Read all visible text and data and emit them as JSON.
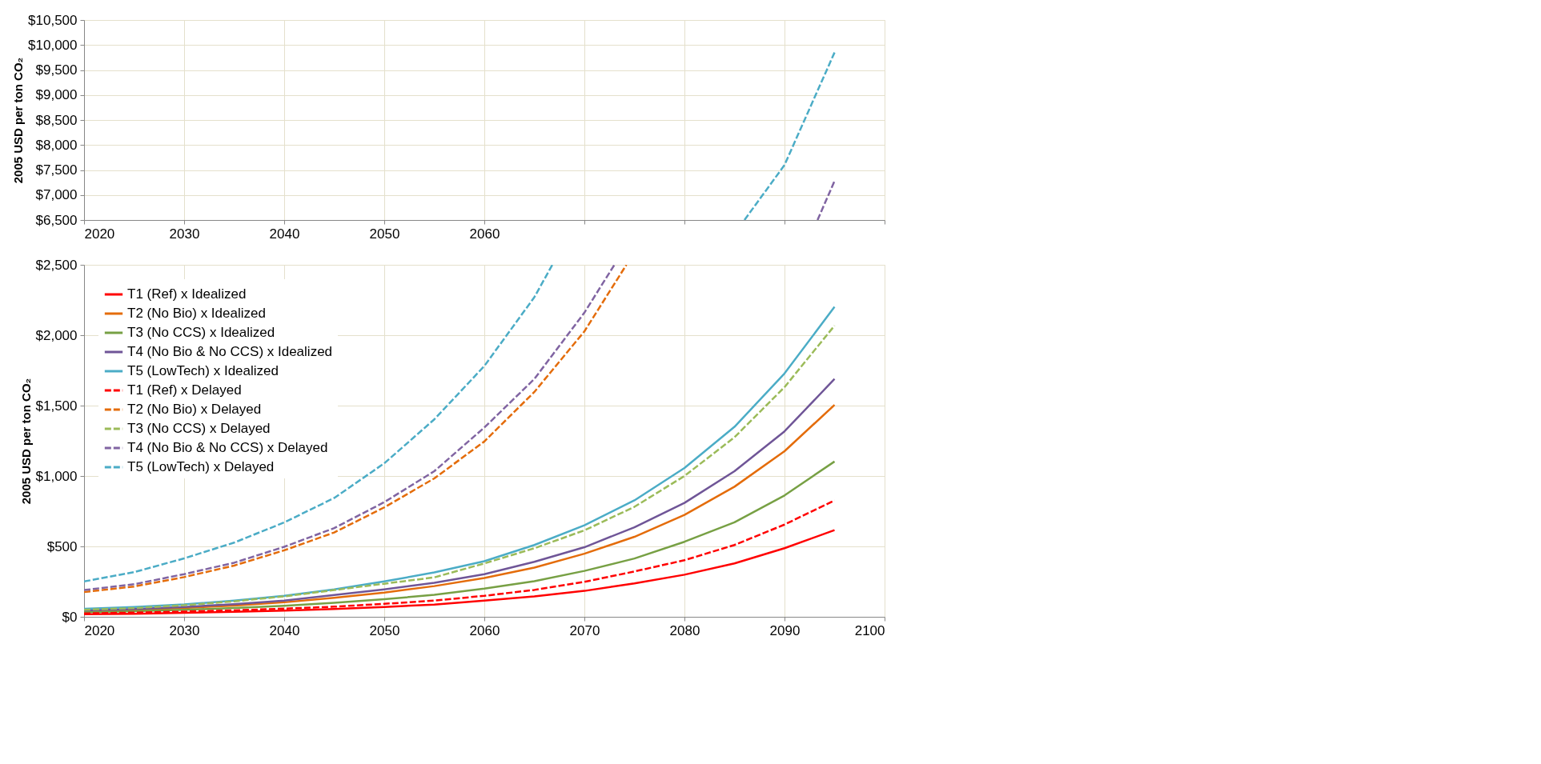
{
  "chart_data": [
    {
      "type": "line",
      "ylabel": "2005 USD per ton CO₂",
      "xlim": [
        2020,
        2100
      ],
      "ylim": [
        6500,
        10500
      ],
      "grid": true,
      "xticks": [
        2020,
        2030,
        2040,
        2050,
        2060,
        {
          "value": 2070,
          "label": null
        },
        {
          "value": 2080,
          "label": null
        },
        {
          "value": 2090,
          "label": null
        },
        {
          "value": 2100,
          "label": null
        }
      ],
      "yticks": [
        {
          "value": 6500,
          "label": "$6,500"
        },
        {
          "value": 7000,
          "label": "$7,000"
        },
        {
          "value": 7500,
          "label": "$7,500"
        },
        {
          "value": 8000,
          "label": "$8,000"
        },
        {
          "value": 8500,
          "label": "$8,500"
        },
        {
          "value": 9000,
          "label": "$9,000"
        },
        {
          "value": 9500,
          "label": "$9,500"
        },
        {
          "value": 10000,
          "label": "$10,000"
        },
        {
          "value": 10500,
          "label": "$10,500"
        }
      ],
      "series": [
        {
          "color": "#8064a2",
          "line_style": "dashed",
          "x": [
            2093.3,
            2095
          ],
          "values": [
            6500,
            7280
          ]
        },
        {
          "color": "#4bacc6",
          "line_style": "dashed",
          "x": [
            2086,
            2090,
            2095
          ],
          "values": [
            6500,
            7600,
            9850
          ]
        }
      ]
    },
    {
      "type": "line",
      "ylabel": "2005 USD per ton CO₂",
      "xlim": [
        2020,
        2100
      ],
      "ylim": [
        0,
        2500
      ],
      "grid": true,
      "legend": "top left",
      "x": [
        2020,
        2025,
        2030,
        2035,
        2040,
        2045,
        2050,
        2055,
        2060,
        2065,
        2070,
        2075,
        2080,
        2085,
        2090,
        2095
      ],
      "xticks": [
        2020,
        2030,
        2040,
        2050,
        2060,
        2070,
        2080,
        2090,
        2100
      ],
      "yticks": [
        {
          "value": 0,
          "label": "$0"
        },
        {
          "value": 500,
          "label": "$500"
        },
        {
          "value": 1000,
          "label": "$1,000"
        },
        {
          "value": 1500,
          "label": "$1,500"
        },
        {
          "value": 2000,
          "label": "$2,000"
        },
        {
          "value": 2500,
          "label": "$2,500"
        }
      ],
      "series": [
        {
          "name": "T1 (Ref) x Idealized",
          "color": "#ff0000",
          "line_style": "solid",
          "values": [
            18,
            22,
            28,
            35,
            44,
            55,
            70,
            87,
            115,
            145,
            184,
            237,
            299,
            379,
            487,
            616
          ]
        },
        {
          "name": "T2 (No Bio) x Idealized",
          "color": "#e46c0a",
          "line_style": "solid",
          "values": [
            40,
            50,
            62,
            80,
            103,
            135,
            172,
            218,
            276,
            349,
            448,
            568,
            724,
            924,
            1176,
            1505
          ]
        },
        {
          "name": "T3 (No CCS) x Idealized",
          "color": "#77a044",
          "line_style": "solid",
          "values": [
            32,
            40,
            50,
            62,
            78,
            100,
            125,
            156,
            200,
            253,
            326,
            414,
            533,
            671,
            862,
            1103
          ]
        },
        {
          "name": "T4 (No Bio & No CCS) x Idealized",
          "color": "#6f5597",
          "line_style": "solid",
          "values": [
            45,
            55,
            70,
            90,
            115,
            155,
            195,
            241,
            303,
            391,
            494,
            636,
            809,
            1034,
            1317,
            1689
          ]
        },
        {
          "name": "T5 (LowTech) x Idealized",
          "color": "#4bacc6",
          "line_style": "solid",
          "values": [
            57,
            70,
            88,
            115,
            149,
            195,
            251,
            315,
            395,
            510,
            650,
            827,
            1057,
            1349,
            1728,
            2201
          ]
        },
        {
          "name": "T1 (Ref) x Delayed",
          "color": "#ff0000",
          "line_style": "dashed",
          "values": [
            24,
            30,
            37,
            46,
            58,
            72,
            92,
            115,
            149,
            191,
            248,
            322,
            402,
            510,
            655,
            827
          ]
        },
        {
          "name": "T2 (No Bio) x Delayed",
          "color": "#e46c0a",
          "line_style": "dashed",
          "x": [
            2020,
            2025,
            2030,
            2035,
            2040,
            2045,
            2050,
            2055,
            2060,
            2065,
            2070,
            2074.2
          ],
          "values": [
            176,
            215,
            282,
            364,
            472,
            599,
            777,
            983,
            1245,
            1597,
            2027,
            2500
          ]
        },
        {
          "name": "T3 (No CCS) x Delayed",
          "color": "#9bbb59",
          "line_style": "dashed",
          "values": [
            50,
            62,
            82,
            110,
            145,
            190,
            235,
            280,
            379,
            487,
            614,
            781,
            1000,
            1275,
            1631,
            2068
          ]
        },
        {
          "name": "T4 (No Bio & No CCS) x Delayed",
          "color": "#8064a2",
          "line_style": "dashed",
          "x": [
            2020,
            2025,
            2030,
            2035,
            2040,
            2045,
            2050,
            2055,
            2060,
            2065,
            2070,
            2073
          ],
          "values": [
            190,
            231,
            303,
            384,
            497,
            630,
            814,
            1034,
            1344,
            1689,
            2160,
            2500
          ]
        },
        {
          "name": "T5 (LowTech) x Delayed",
          "color": "#4bacc6",
          "line_style": "dashed",
          "x": [
            2020,
            2025,
            2030,
            2035,
            2040,
            2045,
            2050,
            2055,
            2060,
            2065,
            2066.8
          ],
          "values": [
            251,
            317,
            415,
            527,
            670,
            844,
            1090,
            1402,
            1781,
            2270,
            2500
          ]
        }
      ]
    }
  ]
}
